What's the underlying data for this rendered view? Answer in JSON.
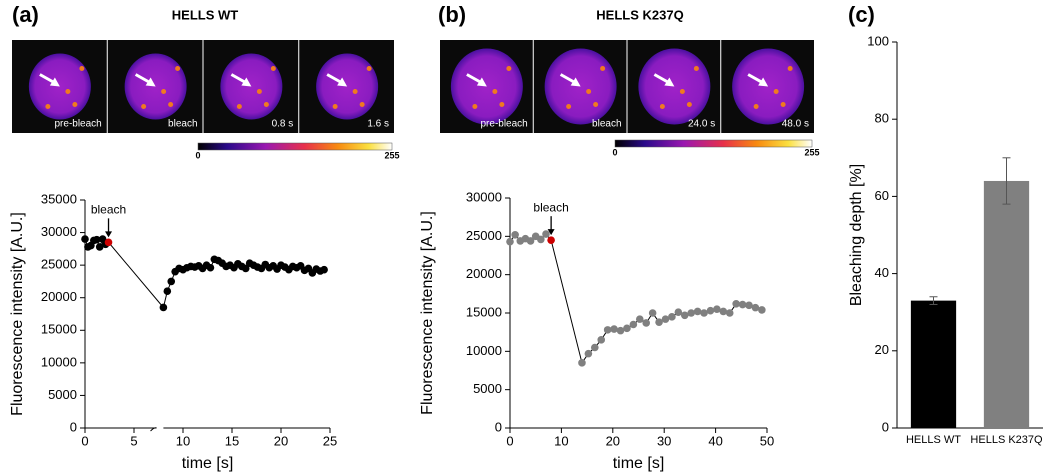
{
  "panel_labels": [
    "(a)",
    "(b)",
    "(c)"
  ],
  "image_panels": [
    {
      "title": "HELLS WT",
      "frames": [
        "pre-bleach",
        "bleach",
        "0.8 s",
        "1.6 s"
      ],
      "colorbar_ticks": [
        0,
        255
      ]
    },
    {
      "title": "HELLS K237Q",
      "frames": [
        "pre-bleach",
        "bleach",
        "24.0 s",
        "48.0 s"
      ],
      "colorbar_ticks": [
        0,
        255
      ]
    }
  ],
  "chart_data": [
    {
      "type": "line",
      "x_label": "time [s]",
      "y_label": "Fluorescence intensity [A.U.]",
      "xlim": [
        0,
        25
      ],
      "xticks": [
        0,
        5,
        10,
        15,
        20,
        25
      ],
      "ylim": [
        0,
        35000
      ],
      "yticks": [
        0,
        5000,
        10000,
        15000,
        20000,
        25000,
        30000,
        35000
      ],
      "x_axis_break": [
        7.3,
        8
      ],
      "x": [
        0,
        0.3,
        0.6,
        0.9,
        1.2,
        1.5,
        1.8,
        2.1,
        2.4,
        8.0,
        8.4,
        8.8,
        9.2,
        9.6,
        10,
        10.4,
        10.8,
        11.2,
        11.6,
        12,
        12.4,
        12.8,
        13.2,
        13.6,
        14,
        14.4,
        14.8,
        15.2,
        15.6,
        16,
        16.4,
        16.8,
        17.2,
        17.6,
        18,
        18.4,
        18.8,
        19.2,
        19.6,
        20,
        20.4,
        20.8,
        21.2,
        21.6,
        22,
        22.4,
        22.8,
        23.2,
        23.6,
        24,
        24.4
      ],
      "series": [
        {
          "color": "#000000",
          "values": [
            29000,
            27800,
            28000,
            28800,
            28900,
            27800,
            29000,
            28200,
            28500,
            18500,
            21000,
            22500,
            24000,
            24500,
            24300,
            24600,
            24800,
            24700,
            24900,
            24500,
            25000,
            24600,
            25900,
            25700,
            25300,
            24800,
            25000,
            24600,
            25200,
            24800,
            24500,
            25300,
            25000,
            24700,
            24500,
            25100,
            24600,
            24900,
            24400,
            25000,
            24700,
            24300,
            24800,
            24600,
            24900,
            24200,
            24500,
            23800,
            24400,
            24100,
            24300
          ]
        }
      ],
      "annotation": {
        "text": "bleach",
        "index": 8,
        "color": "#cc0000"
      }
    },
    {
      "type": "line",
      "x_label": "time [s]",
      "y_label": "Fluorescence intensity [A.U.]",
      "xlim": [
        0,
        50
      ],
      "xticks": [
        0,
        10,
        20,
        30,
        40,
        50
      ],
      "ylim": [
        0,
        30000
      ],
      "yticks": [
        0,
        5000,
        10000,
        15000,
        20000,
        25000,
        30000
      ],
      "x": [
        0,
        1,
        2,
        3,
        4,
        5,
        6,
        7,
        8,
        14,
        15.25,
        16.5,
        17.75,
        19,
        20.25,
        21.5,
        22.75,
        24,
        25.25,
        26.5,
        27.75,
        29,
        30.25,
        31.5,
        32.75,
        34,
        35.25,
        36.5,
        37.75,
        39,
        40.25,
        41.5,
        42.75,
        44,
        45.25,
        46.5,
        47.75,
        49
      ],
      "series": [
        {
          "color": "#808080",
          "values": [
            24300,
            25200,
            24400,
            24700,
            24400,
            25000,
            24600,
            25300,
            24500,
            8500,
            9700,
            10500,
            11500,
            12800,
            12900,
            12700,
            13000,
            13500,
            14200,
            13700,
            15000,
            13800,
            14200,
            14500,
            15100,
            14700,
            15000,
            15200,
            15000,
            15300,
            15500,
            15200,
            15000,
            16200,
            16100,
            16000,
            15700,
            15400
          ]
        }
      ],
      "annotation": {
        "text": "bleach",
        "index": 8,
        "color": "#cc0000"
      }
    },
    {
      "type": "bar",
      "y_label": "Bleaching depth [%]",
      "categories": [
        "HELLS WT",
        "HELLS K237Q"
      ],
      "values": [
        33,
        64
      ],
      "errors": [
        1,
        6
      ],
      "colors": [
        "#000000",
        "#808080"
      ],
      "ylim": [
        0,
        100
      ],
      "yticks": [
        0,
        20,
        40,
        60,
        80,
        100
      ]
    }
  ]
}
